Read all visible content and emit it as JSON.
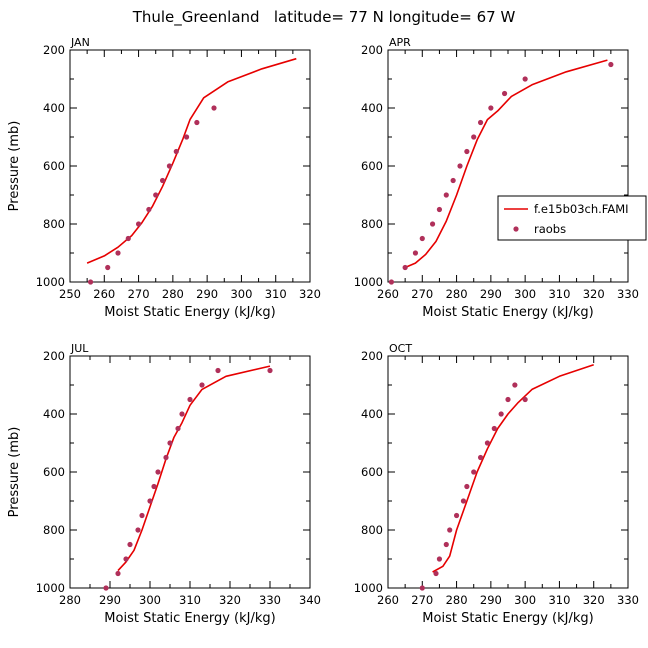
{
  "figure": {
    "title": "Thule_Greenland   latitude= 77 N longitude= 67 W"
  },
  "colors": {
    "model_line": "#e60000",
    "raobs_marker": "#b0305a",
    "axis": "#000000"
  },
  "legend": {
    "placement": "right edge of APR panel",
    "items": [
      {
        "label": "f.e15b03ch.FAMI",
        "style": "line"
      },
      {
        "label": "raobs",
        "style": "marker"
      }
    ]
  },
  "chart_data": [
    {
      "type": "line",
      "panel_label": "JAN",
      "xlabel": "Moist Static Energy (kJ/kg)",
      "ylabel": "Pressure (mb)",
      "xlim": [
        250,
        320
      ],
      "ylim": [
        1000,
        200
      ],
      "xticks": [
        250,
        260,
        270,
        280,
        290,
        300,
        310,
        320
      ],
      "yticks": [
        200,
        400,
        600,
        800,
        1000
      ],
      "series": [
        {
          "name": "f.e15b03ch.FAMI",
          "kind": "line",
          "x": [
            255,
            260,
            264,
            268,
            271,
            274,
            277,
            280,
            283,
            285,
            289,
            296,
            306,
            316
          ],
          "y": [
            935,
            910,
            880,
            840,
            795,
            740,
            670,
            590,
            505,
            440,
            365,
            310,
            265,
            230
          ]
        },
        {
          "name": "raobs",
          "kind": "scatter",
          "x": [
            256,
            261,
            264,
            267,
            270,
            273,
            275,
            277,
            279,
            281,
            284,
            287,
            292
          ],
          "y": [
            1000,
            950,
            900,
            850,
            800,
            750,
            700,
            650,
            600,
            550,
            500,
            450,
            400
          ]
        }
      ]
    },
    {
      "type": "line",
      "panel_label": "APR",
      "xlabel": "Moist Static Energy (kJ/kg)",
      "ylabel": "",
      "xlim": [
        260,
        330
      ],
      "ylim": [
        1000,
        200
      ],
      "xticks": [
        260,
        270,
        280,
        290,
        300,
        310,
        320,
        330
      ],
      "yticks": [
        200,
        400,
        600,
        800,
        1000
      ],
      "series": [
        {
          "name": "f.e15b03ch.FAMI",
          "kind": "line",
          "x": [
            265,
            268,
            271,
            274,
            277,
            280,
            283,
            286,
            289,
            292,
            296,
            302,
            312,
            324
          ],
          "y": [
            950,
            935,
            905,
            860,
            790,
            700,
            600,
            510,
            440,
            410,
            360,
            320,
            275,
            235
          ]
        },
        {
          "name": "raobs",
          "kind": "scatter",
          "x": [
            261,
            265,
            268,
            270,
            273,
            275,
            277,
            279,
            281,
            283,
            285,
            287,
            290,
            294,
            300,
            325
          ],
          "y": [
            1000,
            950,
            900,
            850,
            800,
            750,
            700,
            650,
            600,
            550,
            500,
            450,
            400,
            350,
            300,
            250
          ]
        }
      ]
    },
    {
      "type": "line",
      "panel_label": "JUL",
      "xlabel": "Moist Static Energy (kJ/kg)",
      "ylabel": "Pressure (mb)",
      "xlim": [
        280,
        340
      ],
      "ylim": [
        1000,
        200
      ],
      "xticks": [
        280,
        290,
        300,
        310,
        320,
        330,
        340
      ],
      "yticks": [
        200,
        400,
        600,
        800,
        1000
      ],
      "series": [
        {
          "name": "f.e15b03ch.FAMI",
          "kind": "line",
          "x": [
            292,
            294,
            296,
            298,
            300,
            302,
            304,
            306,
            308,
            310,
            313,
            319,
            330
          ],
          "y": [
            940,
            910,
            870,
            800,
            720,
            640,
            555,
            480,
            430,
            370,
            315,
            270,
            235
          ]
        },
        {
          "name": "raobs",
          "kind": "scatter",
          "x": [
            289,
            292,
            294,
            295,
            297,
            298,
            300,
            301,
            302,
            304,
            305,
            307,
            308,
            310,
            313,
            317,
            330
          ],
          "y": [
            1000,
            950,
            900,
            850,
            800,
            750,
            700,
            650,
            600,
            550,
            500,
            450,
            400,
            350,
            300,
            250,
            250
          ]
        }
      ]
    },
    {
      "type": "line",
      "panel_label": "OCT",
      "xlabel": "Moist Static Energy (kJ/kg)",
      "ylabel": "",
      "xlim": [
        260,
        330
      ],
      "ylim": [
        1000,
        200
      ],
      "xticks": [
        260,
        270,
        280,
        290,
        300,
        310,
        320,
        330
      ],
      "yticks": [
        200,
        400,
        600,
        800,
        1000
      ],
      "series": [
        {
          "name": "f.e15b03ch.FAMI",
          "kind": "line",
          "x": [
            273,
            276,
            278,
            280,
            283,
            286,
            289,
            292,
            295,
            298,
            302,
            310,
            320
          ],
          "y": [
            945,
            925,
            890,
            800,
            700,
            600,
            520,
            450,
            400,
            360,
            315,
            270,
            230
          ]
        },
        {
          "name": "raobs",
          "kind": "scatter",
          "x": [
            270,
            274,
            275,
            277,
            278,
            280,
            282,
            283,
            285,
            287,
            289,
            291,
            293,
            295,
            297,
            300
          ],
          "y": [
            1000,
            950,
            900,
            850,
            800,
            750,
            700,
            650,
            600,
            550,
            500,
            450,
            400,
            350,
            300,
            350
          ]
        }
      ]
    }
  ]
}
